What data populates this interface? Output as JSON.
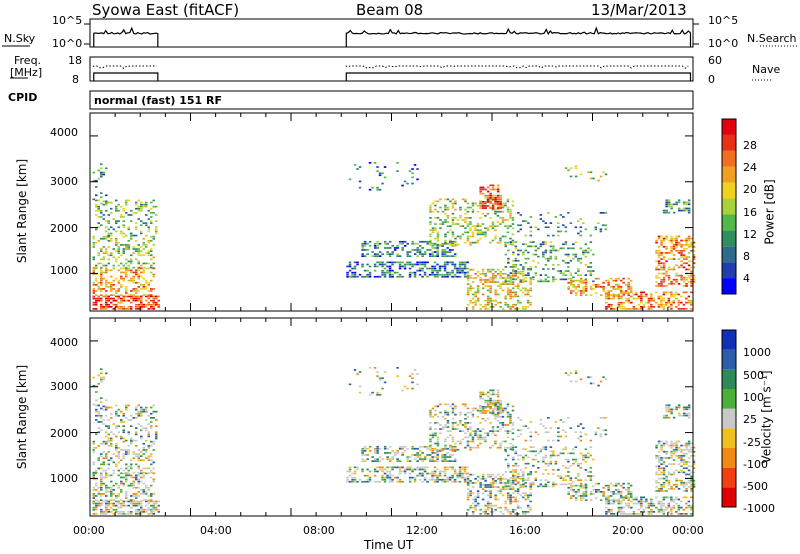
{
  "header": {
    "station": "Syowa East (fitACF)",
    "beam": "Beam 08",
    "date": "13/Mar/2013"
  },
  "nsky_panel": {
    "left_label": "N.Sky",
    "right_label": "N.Search",
    "tick_top": "10^5",
    "tick_bottom": "10^0",
    "right_tick_top": "10^5",
    "right_tick_bottom": "10^0"
  },
  "freq_panel": {
    "left_label_line1": "Freq.",
    "left_label_line2": "[MHz]",
    "right_label": "Nave",
    "left_ticks": [
      "18",
      "8"
    ],
    "right_ticks": [
      "60",
      "0"
    ]
  },
  "cpid": {
    "label": "CPID",
    "mode": "normal (fast) 151 RF"
  },
  "x_axis": {
    "label": "Time UT",
    "ticks": [
      "00:00",
      "04:00",
      "08:00",
      "12:00",
      "16:00",
      "20:00",
      "00:00"
    ]
  },
  "power_panel": {
    "ylabel": "Slant Range [km]",
    "yticks": [
      "4000",
      "3000",
      "2000",
      "1000"
    ],
    "colorbar_label": "Power [dB]",
    "colorbar_ticks": [
      "28",
      "24",
      "20",
      "16",
      "12",
      "8",
      "4"
    ],
    "colors": [
      "#0000ff",
      "#1f3fb0",
      "#2e6b8f",
      "#2f8f5f",
      "#52b84a",
      "#a8d23a",
      "#f0d020",
      "#f0a020",
      "#f07020",
      "#e83018",
      "#e00010"
    ]
  },
  "velocity_panel": {
    "ylabel": "Slant Range [km]",
    "yticks": [
      "4000",
      "3000",
      "2000",
      "1000"
    ],
    "colorbar_label": "Velocity [m s⁻¹]",
    "colorbar_ticks": [
      "1000",
      "500",
      "100",
      "25",
      "-25",
      "-100",
      "-500",
      "-1000"
    ],
    "colors": [
      "#1030b8",
      "#2a5fa8",
      "#2f8a5a",
      "#4ab03a",
      "#c8c8c8",
      "#f0c020",
      "#f08a10",
      "#f04010",
      "#e00000"
    ]
  },
  "chart_data": {
    "type": "heatmap",
    "title": "Syowa East (fitACF)",
    "xlabel": "Time UT",
    "ylabel": "Slant Range [km]",
    "x_range_hours": [
      0,
      24
    ],
    "y_range_km": [
      180,
      4500
    ],
    "data_gaps_hours": [
      [
        2.7,
        10.2
      ]
    ],
    "series": [
      {
        "name": "Power [dB]",
        "range": [
          2,
          32
        ]
      },
      {
        "name": "Velocity [m s⁻¹]",
        "range": [
          -1000,
          1000
        ]
      }
    ]
  }
}
